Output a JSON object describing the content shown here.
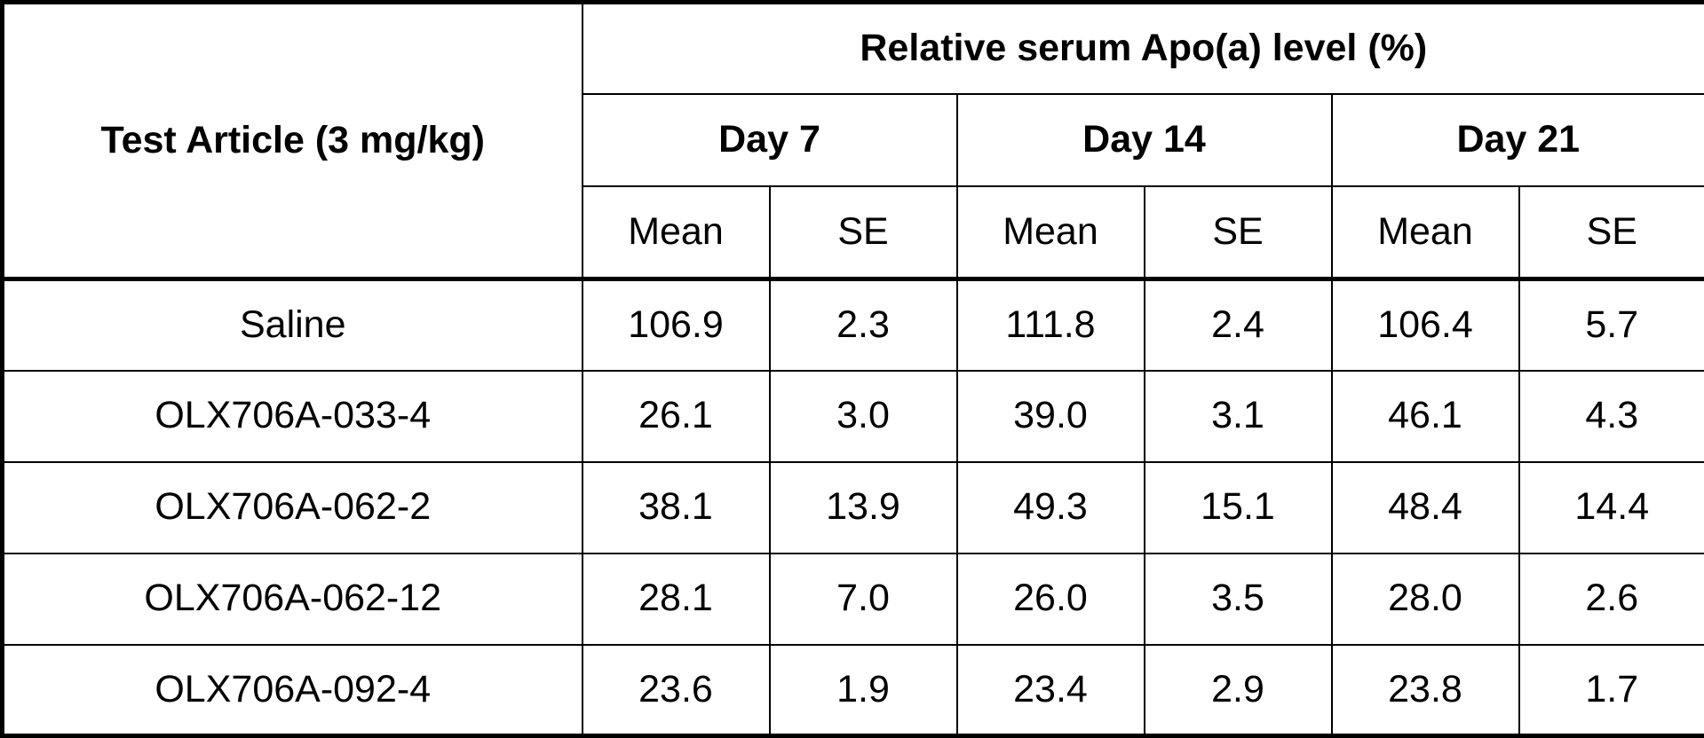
{
  "table": {
    "corner_header": "Test Article (3 mg/kg)",
    "group_header": "Relative serum Apo(a) level (%)",
    "day_headers": [
      "Day 7",
      "Day 14",
      "Day 21"
    ],
    "stat_headers": [
      "Mean",
      "SE",
      "Mean",
      "SE",
      "Mean",
      "SE"
    ],
    "rows": [
      {
        "article": "Saline",
        "values": [
          "106.9",
          "2.3",
          "111.8",
          "2.4",
          "106.4",
          "5.7"
        ]
      },
      {
        "article": "OLX706A-033-4",
        "values": [
          "26.1",
          "3.0",
          "39.0",
          "3.1",
          "46.1",
          "4.3"
        ]
      },
      {
        "article": "OLX706A-062-2",
        "values": [
          "38.1",
          "13.9",
          "49.3",
          "15.1",
          "48.4",
          "14.4"
        ]
      },
      {
        "article": "OLX706A-062-12",
        "values": [
          "28.1",
          "7.0",
          "26.0",
          "3.5",
          "28.0",
          "2.6"
        ]
      },
      {
        "article": "OLX706A-092-4",
        "values": [
          "23.6",
          "1.9",
          "23.4",
          "2.9",
          "23.8",
          "1.7"
        ]
      }
    ]
  },
  "colors": {
    "background": "#ffffff",
    "border": "#000000",
    "text": "#000000"
  },
  "chart_data": {
    "type": "table",
    "title": "Relative serum Apo(a) level (%)",
    "row_label_header": "Test Article (3 mg/kg)",
    "columns": [
      "Day 7 Mean",
      "Day 7 SE",
      "Day 14 Mean",
      "Day 14 SE",
      "Day 21 Mean",
      "Day 21 SE"
    ],
    "rows": [
      {
        "label": "Saline",
        "values": [
          106.9,
          2.3,
          111.8,
          2.4,
          106.4,
          5.7
        ]
      },
      {
        "label": "OLX706A-033-4",
        "values": [
          26.1,
          3.0,
          39.0,
          3.1,
          46.1,
          4.3
        ]
      },
      {
        "label": "OLX706A-062-2",
        "values": [
          38.1,
          13.9,
          49.3,
          15.1,
          48.4,
          14.4
        ]
      },
      {
        "label": "OLX706A-062-12",
        "values": [
          28.1,
          7.0,
          26.0,
          3.5,
          28.0,
          2.6
        ]
      },
      {
        "label": "OLX706A-092-4",
        "values": [
          23.6,
          1.9,
          23.4,
          2.9,
          23.8,
          1.7
        ]
      }
    ]
  }
}
